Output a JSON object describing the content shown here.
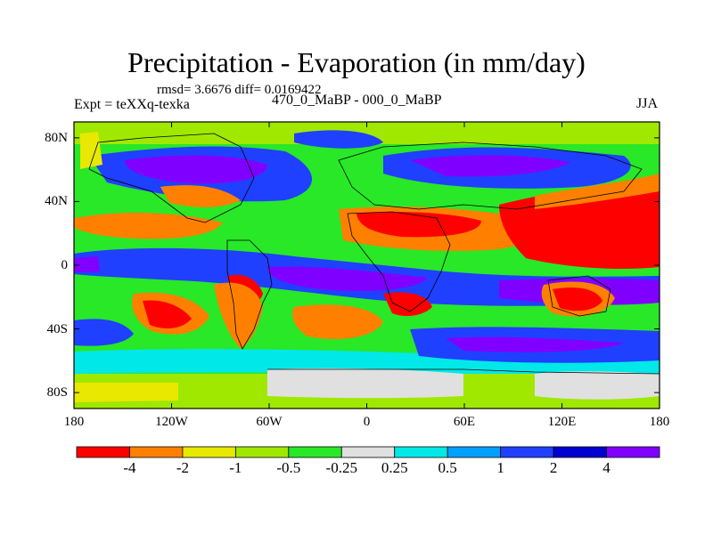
{
  "title": "Precipitation - Evaporation (in mm/day)",
  "stats_line": "rmsd= 3.6676 diff= 0.0169422",
  "experiment_label": "Expt = teXXq-texka",
  "comparison_label": "470_0_MaBP - 000_0_MaBP",
  "season_label": "JJA",
  "y_axis": {
    "ticks": [
      {
        "label": "80N",
        "value": 80
      },
      {
        "label": "40N",
        "value": 40
      },
      {
        "label": "0",
        "value": 0
      },
      {
        "label": "40S",
        "value": -40
      },
      {
        "label": "80S",
        "value": -80
      }
    ]
  },
  "x_axis": {
    "ticks": [
      {
        "label": "180",
        "value": -180
      },
      {
        "label": "120W",
        "value": -120
      },
      {
        "label": "60W",
        "value": -60
      },
      {
        "label": "0",
        "value": 0
      },
      {
        "label": "60E",
        "value": 60
      },
      {
        "label": "120E",
        "value": 120
      },
      {
        "label": "180",
        "value": 180
      }
    ]
  },
  "colorbar": {
    "colors": [
      "#ff0000",
      "#ff8000",
      "#e8e800",
      "#a0e800",
      "#28e828",
      "#e0e0e0",
      "#00e8e8",
      "#00a0ff",
      "#2040ff",
      "#0000d0",
      "#8000ff"
    ],
    "labels": [
      "-4",
      "-2",
      "-1",
      "-0.5",
      "-0.25",
      "0.25",
      "0.5",
      "1",
      "2",
      "4"
    ]
  }
}
